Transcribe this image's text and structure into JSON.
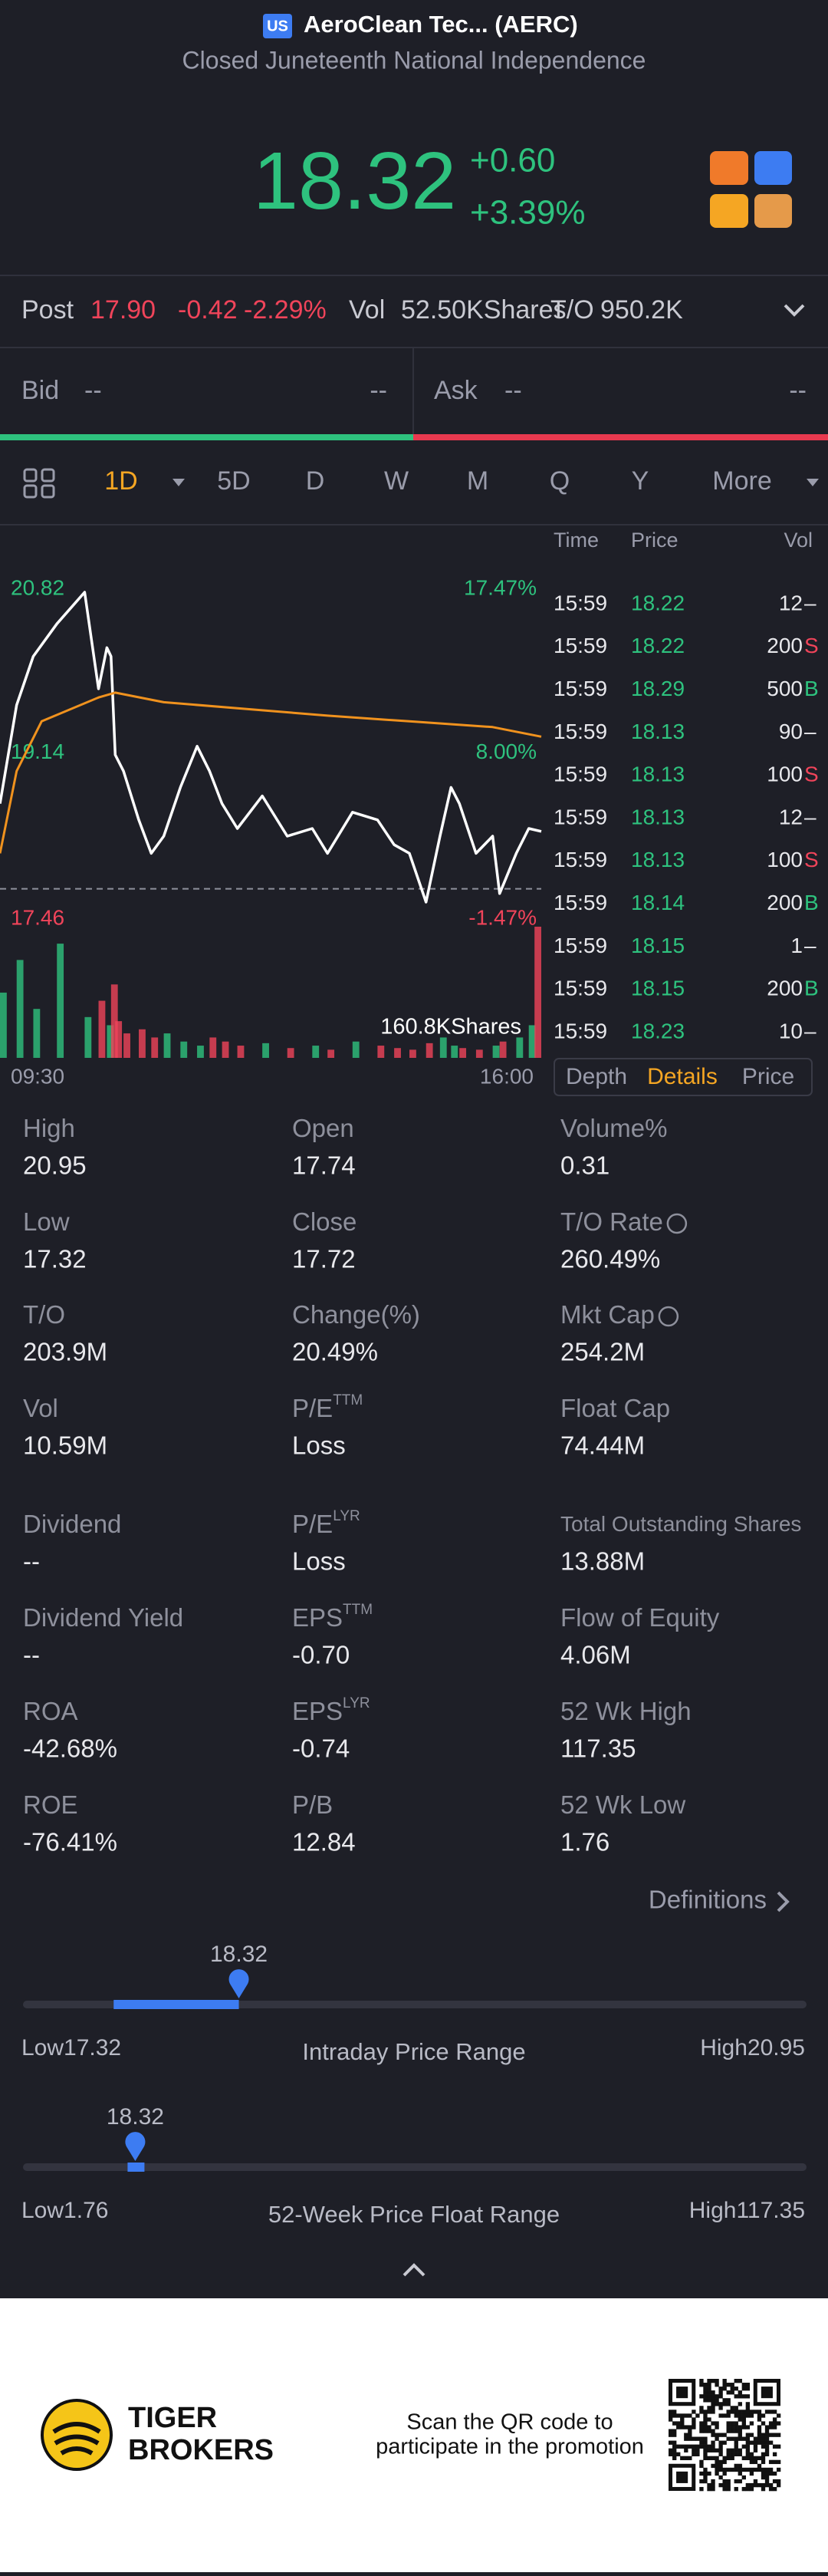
{
  "header": {
    "market_badge": "US",
    "title": "AeroClean Tec... (AERC)",
    "subtitle": "Closed Juneteenth National Independence"
  },
  "quote": {
    "price": "18.32",
    "change": "+0.60",
    "change_pct": "+3.39%"
  },
  "post": {
    "label": "Post",
    "price": "17.90",
    "change": "-0.42",
    "change_pct": "-2.29%",
    "vol_label": "Vol",
    "vol": "52.50KShares",
    "to_label": "T/O",
    "to": "950.2K"
  },
  "bid_ask": {
    "bid_label": "Bid",
    "bid_price": "--",
    "bid_size": "--",
    "ask_label": "Ask",
    "ask_price": "--",
    "ask_size": "--"
  },
  "tabs": {
    "items": [
      "1D",
      "5D",
      "D",
      "W",
      "M",
      "Q",
      "Y",
      "More"
    ],
    "selected": 0
  },
  "chart_data": {
    "type": "line",
    "x": [
      "09:30",
      "09:42",
      "09:54",
      "10:11",
      "10:31",
      "10:41",
      "10:47",
      "10:50",
      "10:53",
      "10:59",
      "11:10",
      "11:19",
      "11:28",
      "11:40",
      "11:52",
      "12:01",
      "12:10",
      "12:21",
      "12:39",
      "12:57",
      "13:15",
      "13:26",
      "13:44",
      "14:02",
      "14:14",
      "14:25",
      "14:37",
      "14:47",
      "14:55",
      "15:01",
      "15:13",
      "15:25",
      "15:30",
      "15:42",
      "15:51",
      "16:00"
    ],
    "series": [
      {
        "name": "Price",
        "color": "#ffffff",
        "values": [
          18.61,
          19.64,
          20.15,
          20.49,
          20.82,
          19.81,
          20.24,
          20.15,
          19.12,
          18.95,
          18.44,
          18.09,
          18.27,
          18.78,
          19.21,
          18.95,
          18.61,
          18.35,
          18.69,
          18.27,
          18.35,
          18.09,
          18.52,
          18.44,
          18.18,
          18.09,
          17.58,
          18.27,
          18.78,
          18.61,
          18.09,
          18.27,
          17.67,
          18.09,
          18.35,
          18.32
        ]
      },
      {
        "name": "Average",
        "color": "#f0921e",
        "x": [
          "09:30",
          "09:42",
          "10:00",
          "10:41",
          "10:53",
          "11:28",
          "12:27",
          "13:26",
          "14:25",
          "15:25",
          "16:00"
        ],
        "values": [
          18.09,
          18.95,
          19.47,
          19.72,
          19.77,
          19.67,
          19.6,
          19.53,
          19.47,
          19.41,
          19.31
        ]
      }
    ],
    "xlim": [
      "09:30",
      "16:00"
    ],
    "ylim": [
      17.46,
      20.82
    ],
    "yticks": [
      17.46,
      19.14,
      20.82
    ],
    "yticks_right": [
      "-1.47%",
      "8.00%",
      "17.47%"
    ],
    "volume": {
      "values": [
        80,
        120,
        60,
        140,
        50,
        70,
        40,
        90,
        45,
        30,
        35,
        25,
        30,
        20,
        15,
        25,
        20,
        15,
        18,
        12,
        15,
        10,
        20,
        15,
        12,
        10,
        18,
        25,
        15,
        12,
        10,
        15,
        20,
        25,
        40,
        160.8
      ],
      "max_label": "160.8KShares"
    }
  },
  "trades": {
    "header": [
      "Time",
      "Price",
      "Vol"
    ],
    "rows": [
      {
        "time": "15:59",
        "price": "18.22",
        "vol": "12",
        "side": "–"
      },
      {
        "time": "15:59",
        "price": "18.22",
        "vol": "200",
        "side": "S"
      },
      {
        "time": "15:59",
        "price": "18.29",
        "vol": "500",
        "side": "B"
      },
      {
        "time": "15:59",
        "price": "18.13",
        "vol": "90",
        "side": "–"
      },
      {
        "time": "15:59",
        "price": "18.13",
        "vol": "100",
        "side": "S"
      },
      {
        "time": "15:59",
        "price": "18.13",
        "vol": "12",
        "side": "–"
      },
      {
        "time": "15:59",
        "price": "18.13",
        "vol": "100",
        "side": "S"
      },
      {
        "time": "15:59",
        "price": "18.14",
        "vol": "200",
        "side": "B"
      },
      {
        "time": "15:59",
        "price": "18.15",
        "vol": "1",
        "side": "–"
      },
      {
        "time": "15:59",
        "price": "18.15",
        "vol": "200",
        "side": "B"
      },
      {
        "time": "15:59",
        "price": "18.23",
        "vol": "10",
        "side": "–"
      }
    ],
    "tabs": [
      "Depth",
      "Details",
      "Price"
    ],
    "selected": 1
  },
  "time_labels": [
    "09:30",
    "16:00"
  ],
  "stats": {
    "rows": [
      [
        {
          "label": "High",
          "value": "20.95"
        },
        {
          "label": "Open",
          "value": "17.74"
        },
        {
          "label": "Volume%",
          "value": "0.31"
        }
      ],
      [
        {
          "label": "Low",
          "value": "17.32"
        },
        {
          "label": "Close",
          "value": "17.72"
        },
        {
          "label": "T/O Rate",
          "value": "260.49%",
          "info": true
        }
      ],
      [
        {
          "label": "T/O",
          "value": "203.9M"
        },
        {
          "label": "Change(%)",
          "value": "20.49%"
        },
        {
          "label": "Mkt Cap",
          "value": "254.2M",
          "info": true
        }
      ],
      [
        {
          "label": "Vol",
          "value": "10.59M"
        },
        {
          "label": "P/E",
          "sup": "TTM",
          "value": "Loss"
        },
        {
          "label": "Float Cap",
          "value": "74.44M"
        }
      ],
      [
        {
          "label": "Dividend",
          "value": "--"
        },
        {
          "label": "P/E",
          "sup": "LYR",
          "value": "Loss"
        },
        {
          "label": "Total Outstanding Shares",
          "value": "13.88M"
        }
      ],
      [
        {
          "label": "Dividend Yield",
          "value": "--"
        },
        {
          "label": "EPS",
          "sup": "TTM",
          "value": "-0.70"
        },
        {
          "label": "Flow of Equity",
          "value": "4.06M"
        }
      ],
      [
        {
          "label": "ROA",
          "value": "-42.68%"
        },
        {
          "label": "EPS",
          "sup": "LYR",
          "value": "-0.74"
        },
        {
          "label": "52 Wk High",
          "value": "117.35"
        }
      ],
      [
        {
          "label": "ROE",
          "value": "-76.41%"
        },
        {
          "label": "P/B",
          "value": "12.84"
        },
        {
          "label": "52 Wk Low",
          "value": "1.76"
        }
      ]
    ],
    "definitions": "Definitions"
  },
  "ranges": [
    {
      "current": 18.32,
      "low_label": "Low",
      "low": 17.32,
      "title": "Intraday Price Range",
      "high_label": "High",
      "high": 20.95
    },
    {
      "current": 18.32,
      "low_label": "Low",
      "low": 1.76,
      "title": "52-Week Price Float Range",
      "high_label": "High",
      "high": 117.35
    }
  ],
  "footer": {
    "brand_line1": "TIGER",
    "brand_line2": "BROKERS",
    "promo_line1": "Scan the QR code to",
    "promo_line2": "participate in the promotion"
  }
}
